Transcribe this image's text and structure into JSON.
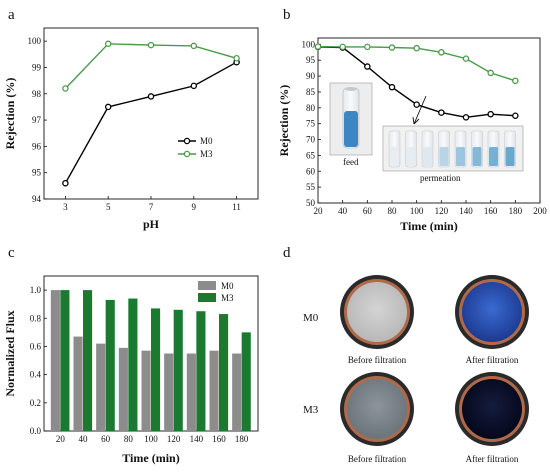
{
  "panels": {
    "a": "a",
    "b": "b",
    "c": "c",
    "d": "d"
  },
  "chart_data": [
    {
      "panel": "a",
      "type": "line",
      "xlabel": "pH",
      "ylabel": "Rejection (%)",
      "x": [
        3,
        5,
        7,
        9,
        11
      ],
      "xlim": [
        2,
        12
      ],
      "ylim": [
        94,
        100.5
      ],
      "xticks": [
        3,
        5,
        7,
        9,
        11
      ],
      "yticks": [
        94,
        95,
        96,
        97,
        98,
        99,
        100
      ],
      "legend_position": "center-right",
      "series": [
        {
          "name": "M0",
          "color": "#000000",
          "values": [
            94.6,
            97.5,
            97.9,
            98.3,
            99.2
          ]
        },
        {
          "name": "M3",
          "color": "#4a9a4a",
          "values": [
            98.2,
            99.9,
            99.85,
            99.82,
            99.35
          ]
        }
      ]
    },
    {
      "panel": "b",
      "type": "line",
      "xlabel": "Time (min)",
      "ylabel": "Rejection (%)",
      "x": [
        20,
        40,
        60,
        80,
        100,
        120,
        140,
        160,
        180
      ],
      "xlim": [
        20,
        200
      ],
      "ylim": [
        50,
        102
      ],
      "xticks": [
        20,
        40,
        60,
        80,
        100,
        120,
        140,
        160,
        180,
        200
      ],
      "yticks": [
        50,
        55,
        60,
        65,
        70,
        75,
        80,
        85,
        90,
        95,
        100
      ],
      "series": [
        {
          "name": "M0",
          "color": "#000000",
          "values": [
            99.2,
            99,
            93,
            86.5,
            81,
            78.5,
            77,
            78,
            77.5
          ]
        },
        {
          "name": "M3",
          "color": "#4a9a4a",
          "values": [
            99.3,
            99.2,
            99.2,
            99,
            98.8,
            97.5,
            95.5,
            91,
            88.5
          ]
        }
      ],
      "annotations": [
        "feed",
        "permeation"
      ]
    },
    {
      "panel": "c",
      "type": "bar",
      "xlabel": "Time (min)",
      "ylabel": "Normalized Flux",
      "categories": [
        "20",
        "40",
        "60",
        "80",
        "100",
        "120",
        "140",
        "160",
        "180"
      ],
      "ylim": [
        0,
        1.1
      ],
      "yticks": [
        0.0,
        0.2,
        0.4,
        0.6,
        0.8,
        1.0
      ],
      "legend_position": "top-right",
      "series": [
        {
          "name": "M0",
          "color": "#8c8c8c",
          "values": [
            1.0,
            0.67,
            0.62,
            0.59,
            0.57,
            0.55,
            0.55,
            0.57,
            0.55
          ]
        },
        {
          "name": "M3",
          "color": "#1a7a30",
          "values": [
            1.0,
            1.0,
            0.93,
            0.94,
            0.87,
            0.86,
            0.85,
            0.83,
            0.7
          ]
        }
      ]
    }
  ],
  "photos": {
    "row_labels": [
      "M0",
      "M3"
    ],
    "captions": [
      "Before filtration",
      "After filtration",
      "Before filtration",
      "After filtration"
    ]
  }
}
